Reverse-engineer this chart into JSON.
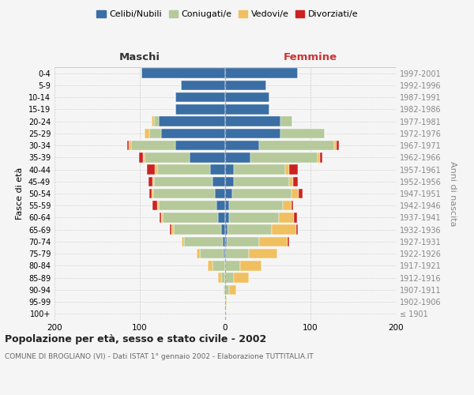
{
  "age_groups": [
    "100+",
    "95-99",
    "90-94",
    "85-89",
    "80-84",
    "75-79",
    "70-74",
    "65-69",
    "60-64",
    "55-59",
    "50-54",
    "45-49",
    "40-44",
    "35-39",
    "30-34",
    "25-29",
    "20-24",
    "15-19",
    "10-14",
    "5-9",
    "0-4"
  ],
  "birth_years": [
    "≤ 1901",
    "1902-1906",
    "1907-1911",
    "1912-1916",
    "1917-1921",
    "1922-1926",
    "1927-1931",
    "1932-1936",
    "1937-1941",
    "1942-1946",
    "1947-1951",
    "1952-1956",
    "1957-1961",
    "1962-1966",
    "1967-1971",
    "1972-1976",
    "1977-1981",
    "1982-1986",
    "1987-1991",
    "1992-1996",
    "1997-2001"
  ],
  "males_celibe": [
    0,
    0,
    0,
    0,
    0,
    2,
    3,
    5,
    8,
    10,
    12,
    15,
    18,
    42,
    58,
    75,
    78,
    58,
    58,
    52,
    98
  ],
  "males_coniugato": [
    0,
    0,
    2,
    5,
    15,
    28,
    45,
    55,
    65,
    68,
    72,
    68,
    62,
    52,
    52,
    14,
    5,
    0,
    0,
    0,
    0
  ],
  "males_vedovo": [
    0,
    0,
    0,
    3,
    5,
    3,
    3,
    3,
    2,
    2,
    2,
    2,
    2,
    2,
    3,
    5,
    3,
    0,
    0,
    0,
    0
  ],
  "males_divorziato": [
    0,
    0,
    0,
    0,
    0,
    0,
    0,
    2,
    2,
    5,
    3,
    5,
    10,
    5,
    2,
    0,
    0,
    0,
    0,
    0,
    0
  ],
  "females_nubile": [
    0,
    0,
    0,
    0,
    0,
    0,
    2,
    3,
    5,
    5,
    8,
    10,
    10,
    30,
    40,
    65,
    65,
    52,
    52,
    48,
    85
  ],
  "females_coniugata": [
    0,
    1,
    5,
    10,
    18,
    28,
    38,
    52,
    58,
    63,
    70,
    65,
    60,
    78,
    88,
    52,
    14,
    0,
    0,
    0,
    0
  ],
  "females_vedova": [
    0,
    1,
    8,
    18,
    25,
    33,
    33,
    28,
    18,
    10,
    8,
    5,
    5,
    3,
    3,
    0,
    0,
    0,
    0,
    0,
    0
  ],
  "females_divorziata": [
    0,
    0,
    0,
    0,
    0,
    0,
    2,
    2,
    3,
    2,
    5,
    5,
    10,
    3,
    2,
    0,
    0,
    0,
    0,
    0,
    0
  ],
  "color_celibe": "#3a6ea5",
  "color_coniugato": "#b5c99a",
  "color_vedovo": "#f0c060",
  "color_divorziato": "#cc2222",
  "bg_color": "#f5f5f5",
  "grid_color": "#cccccc",
  "title": "Popolazione per età, sesso e stato civile - 2002",
  "subtitle": "COMUNE DI BROGLIANO (VI) - Dati ISTAT 1° gennaio 2002 - Elaborazione TUTTITALIA.IT",
  "xlabel_left": "Maschi",
  "xlabel_right": "Femmine",
  "ylabel_left": "Fasce di età",
  "ylabel_right": "Anni di nascita",
  "xlim": 200
}
